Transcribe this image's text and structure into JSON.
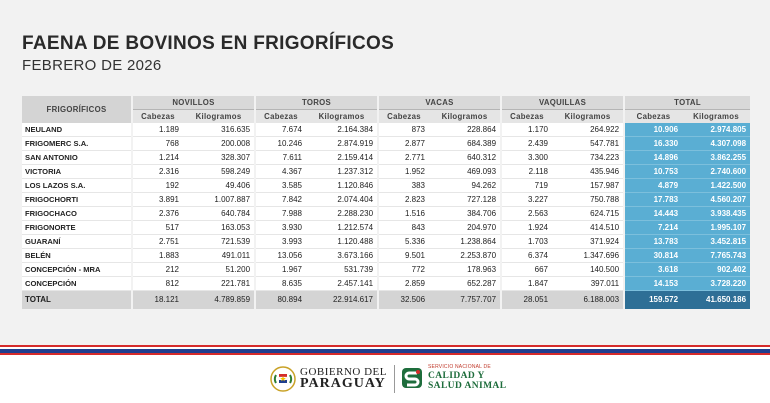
{
  "header": {
    "title": "FAENA DE BOVINOS EN FRIGORÍFICOS",
    "subtitle": "FEBRERO DE 2026"
  },
  "table": {
    "first_col_header": "FRIGORÍFICOS",
    "groups": [
      "NOVILLOS",
      "TOROS",
      "VACAS",
      "VAQUILLAS",
      "TOTAL"
    ],
    "subheaders": [
      "Cabezas",
      "Kilogramos"
    ],
    "rows": [
      {
        "name": "NEULAND",
        "values": [
          "1.189",
          "316.635",
          "7.674",
          "2.164.384",
          "873",
          "228.864",
          "1.170",
          "264.922",
          "10.906",
          "2.974.805"
        ]
      },
      {
        "name": "FRIGOMERC S.A.",
        "values": [
          "768",
          "200.008",
          "10.246",
          "2.874.919",
          "2.877",
          "684.389",
          "2.439",
          "547.781",
          "16.330",
          "4.307.098"
        ]
      },
      {
        "name": "SAN ANTONIO",
        "values": [
          "1.214",
          "328.307",
          "7.611",
          "2.159.414",
          "2.771",
          "640.312",
          "3.300",
          "734.223",
          "14.896",
          "3.862.255"
        ]
      },
      {
        "name": "VICTORIA",
        "values": [
          "2.316",
          "598.249",
          "4.367",
          "1.237.312",
          "1.952",
          "469.093",
          "2.118",
          "435.946",
          "10.753",
          "2.740.600"
        ]
      },
      {
        "name": "LOS LAZOS S.A.",
        "values": [
          "192",
          "49.406",
          "3.585",
          "1.120.846",
          "383",
          "94.262",
          "719",
          "157.987",
          "4.879",
          "1.422.500"
        ]
      },
      {
        "name": "FRIGOCHORTI",
        "values": [
          "3.891",
          "1.007.887",
          "7.842",
          "2.074.404",
          "2.823",
          "727.128",
          "3.227",
          "750.788",
          "17.783",
          "4.560.207"
        ]
      },
      {
        "name": "FRIGOCHACO",
        "values": [
          "2.376",
          "640.784",
          "7.988",
          "2.288.230",
          "1.516",
          "384.706",
          "2.563",
          "624.715",
          "14.443",
          "3.938.435"
        ]
      },
      {
        "name": "FRIGONORTE",
        "values": [
          "517",
          "163.053",
          "3.930",
          "1.212.574",
          "843",
          "204.970",
          "1.924",
          "414.510",
          "7.214",
          "1.995.107"
        ]
      },
      {
        "name": "GUARANÍ",
        "values": [
          "2.751",
          "721.539",
          "3.993",
          "1.120.488",
          "5.336",
          "1.238.864",
          "1.703",
          "371.924",
          "13.783",
          "3.452.815"
        ]
      },
      {
        "name": "BELÉN",
        "values": [
          "1.883",
          "491.011",
          "13.056",
          "3.673.166",
          "9.501",
          "2.253.870",
          "6.374",
          "1.347.696",
          "30.814",
          "7.765.743"
        ]
      },
      {
        "name": "CONCEPCIÓN - MRA",
        "values": [
          "212",
          "51.200",
          "1.967",
          "531.739",
          "772",
          "178.963",
          "667",
          "140.500",
          "3.618",
          "902.402"
        ]
      },
      {
        "name": "CONCEPCIÓN",
        "values": [
          "812",
          "221.781",
          "8.635",
          "2.457.141",
          "2.859",
          "652.287",
          "1.847",
          "397.011",
          "14.153",
          "3.728.220"
        ]
      }
    ],
    "total": {
      "name": "TOTAL",
      "values": [
        "18.121",
        "4.789.859",
        "80.894",
        "22.914.617",
        "32.506",
        "7.757.707",
        "28.051",
        "6.188.003",
        "159.572",
        "41.650.186"
      ]
    }
  },
  "footer": {
    "gobierno_small": "GOBIERNO DEL",
    "gobierno_big": "PARAGUAY",
    "senacsa_line1": "SERVICIO NACIONAL DE",
    "senacsa_line2": "CALIDAD Y",
    "senacsa_line3": "SALUD ANIMAL",
    "colors": {
      "total_col": "#5aaed3",
      "total_row_total": "#2e6f96",
      "flag_red": "#d52b2b",
      "flag_blue": "#1f3f8f"
    }
  }
}
